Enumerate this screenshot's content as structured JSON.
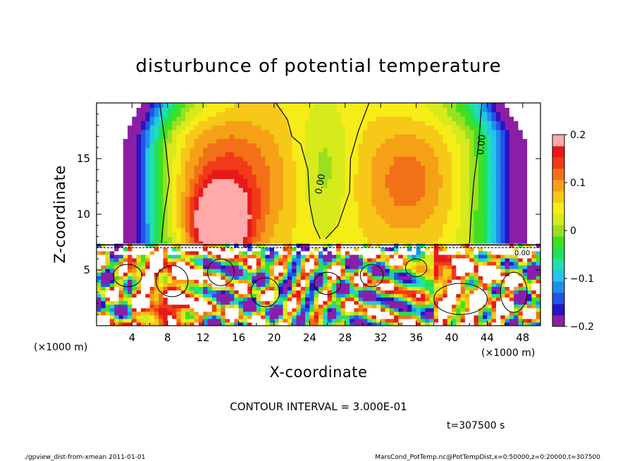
{
  "chart_data": {
    "type": "heatmap",
    "title": "disturbunce of potential temperature",
    "xlabel": "X-coordinate",
    "ylabel": "Z-coordinate",
    "x_unit": "(×1000 m)",
    "y_unit": "(×1000 m)",
    "xlim": [
      0,
      50
    ],
    "ylim": [
      0,
      20
    ],
    "x_ticks": [
      "4",
      "8",
      "12",
      "16",
      "20",
      "24",
      "28",
      "32",
      "36",
      "40",
      "44",
      "48"
    ],
    "y_ticks": [
      "5",
      "10",
      "15"
    ],
    "colorbar": {
      "range": [
        -0.2,
        0.2
      ],
      "ticks": [
        "0.2",
        "0.1",
        "0",
        "−0.1",
        "−0.2"
      ],
      "tick_values": [
        0.2,
        0.1,
        0,
        -0.1,
        -0.2
      ],
      "colors": [
        "#8a1fa6",
        "#2a12c4",
        "#1f55e8",
        "#1f8fe8",
        "#22c6e8",
        "#1fe0b0",
        "#22e05a",
        "#40e020",
        "#9ae020",
        "#d6ea1c",
        "#f6ec18",
        "#f6c818",
        "#f6a018",
        "#f27018",
        "#f23a18",
        "#e81818",
        "#ffaaaa"
      ]
    },
    "contour_labels": [
      "0.00",
      "0.00",
      "0.00"
    ],
    "contour_interval_text": "CONTOUR INTERVAL = 3.000E-01",
    "time_text": "t=307500 s",
    "footer_left": "./gpview_dist-from-xmean  2011-01-01",
    "footer_right": "MarsCond_PotTemp.nc@PotTempDist,x=0:50000,z=0:20000,t=307500"
  }
}
